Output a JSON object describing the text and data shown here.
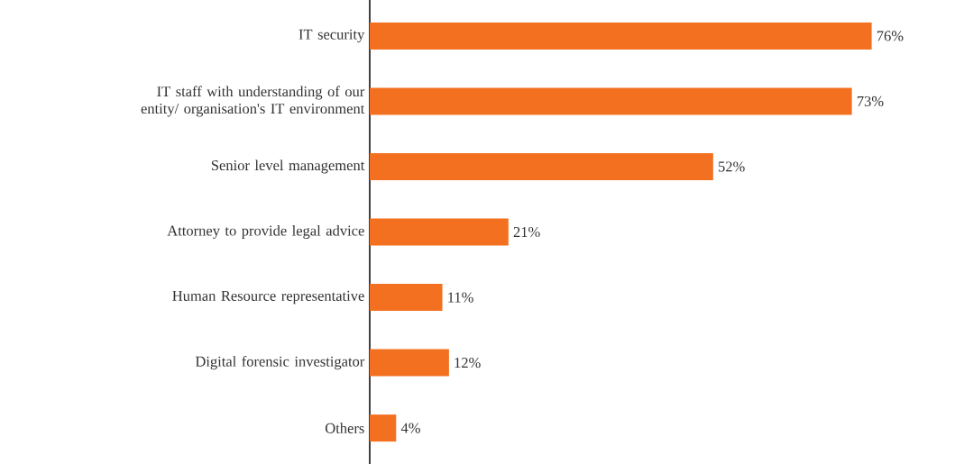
{
  "chart_data": {
    "type": "bar",
    "orientation": "horizontal",
    "categories": [
      "IT security",
      "IT staff with understanding of our entity/ organisation's IT environment",
      "Senior level management",
      "Attorney to provide legal advice",
      "Human Resource representative",
      "Digital forensic investigator",
      "Others"
    ],
    "values": [
      76,
      73,
      52,
      21,
      11,
      12,
      4
    ],
    "value_labels": [
      "76%",
      "73%",
      "52%",
      "21%",
      "11%",
      "12%",
      "4%"
    ],
    "color": "#f37021"
  }
}
